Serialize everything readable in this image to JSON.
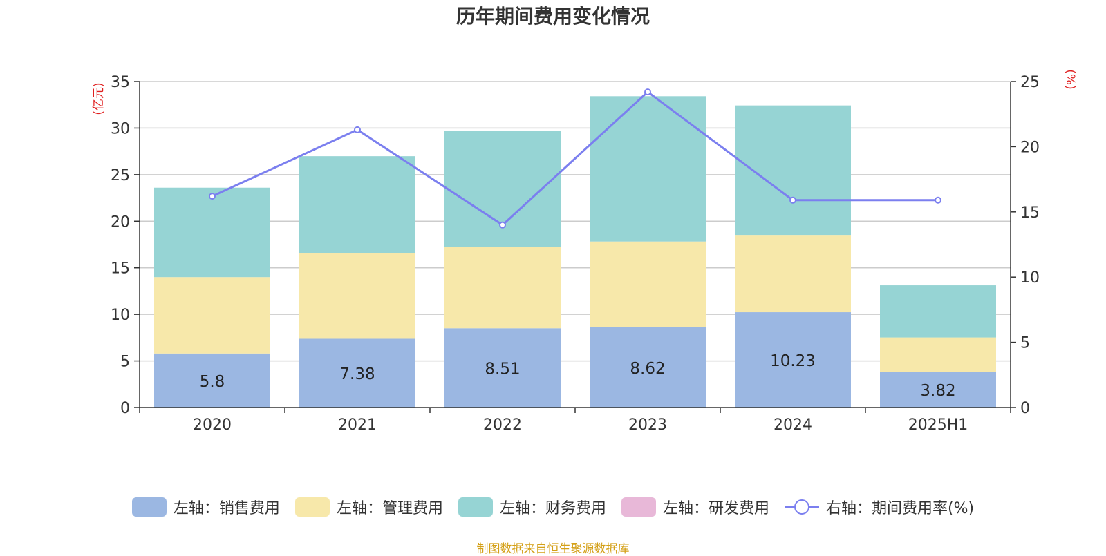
{
  "chart_data": {
    "type": "bar",
    "title": "历年期间费用变化情况",
    "categories": [
      "2020",
      "2021",
      "2022",
      "2023",
      "2024",
      "2025H1"
    ],
    "series": [
      {
        "name": "左轴：销售费用",
        "axis": "left",
        "color": "#9bb7e2",
        "values": [
          5.8,
          7.38,
          8.51,
          8.62,
          10.23,
          3.82
        ],
        "labels": [
          "5.8",
          "7.38",
          "8.51",
          "8.62",
          "10.23",
          "3.82"
        ]
      },
      {
        "name": "左轴：管理费用",
        "axis": "left",
        "color": "#f7e8aa",
        "values": [
          8.2,
          9.2,
          8.7,
          9.2,
          8.3,
          3.7
        ]
      },
      {
        "name": "左轴：财务费用",
        "axis": "left",
        "color": "#96d4d4",
        "values": [
          9.6,
          10.4,
          12.5,
          15.6,
          13.9,
          5.6
        ]
      },
      {
        "name": "左轴：研发费用",
        "axis": "left",
        "color": "#e8b8d8",
        "values": [
          0,
          0,
          0,
          0,
          0,
          0
        ]
      },
      {
        "name": "右轴：期间费用率(%)",
        "axis": "right",
        "type": "line",
        "color": "#7b7fef",
        "values": [
          16.2,
          21.3,
          14.0,
          24.2,
          15.9,
          15.9
        ]
      }
    ],
    "left_axis": {
      "label": "(亿元)",
      "ylim": [
        0,
        35
      ],
      "ticks": [
        "0",
        "5",
        "10",
        "15",
        "20",
        "25",
        "30",
        "35"
      ]
    },
    "right_axis": {
      "label": "(%)",
      "ylim": [
        0,
        25
      ],
      "ticks": [
        "0",
        "5",
        "10",
        "15",
        "20",
        "25"
      ]
    },
    "grid": true,
    "legend_position": "bottom",
    "source": "制图数据来自恒生聚源数据库"
  }
}
